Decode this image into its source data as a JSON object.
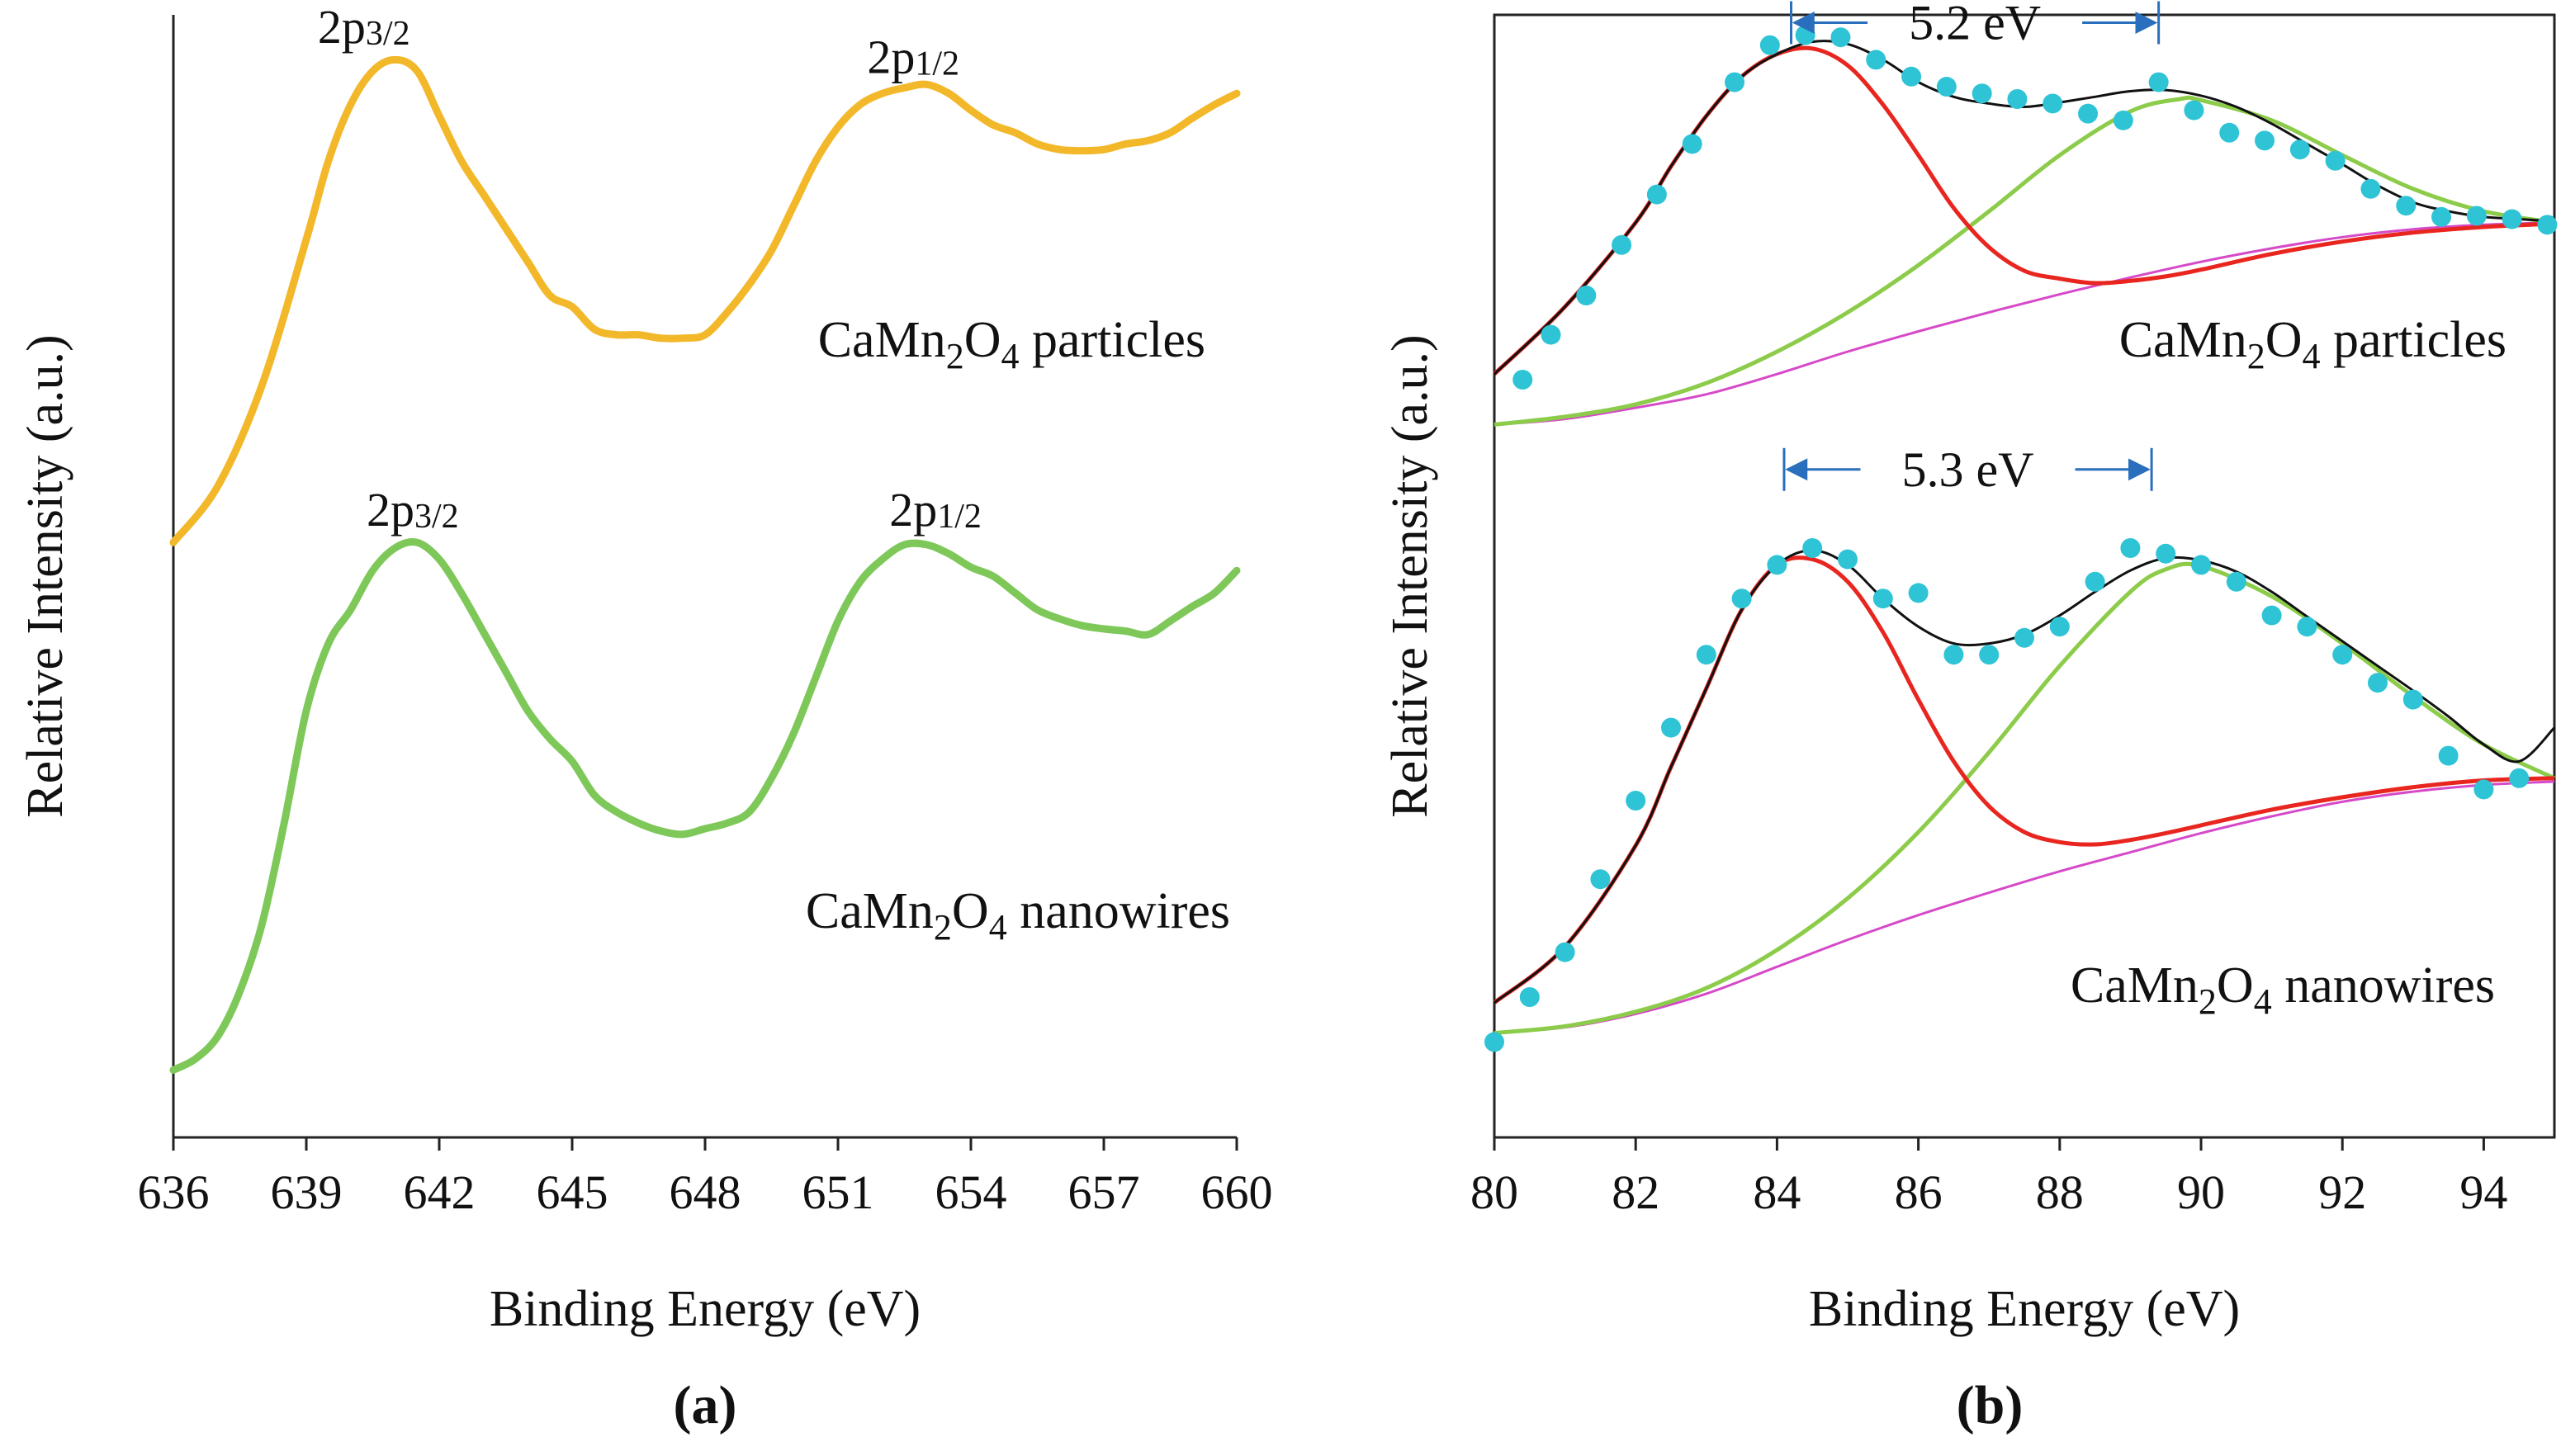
{
  "chart_data": [
    {
      "panel": "a",
      "panel_label": "(a)",
      "type": "line",
      "xlabel": "Binding Energy (eV)",
      "ylabel": "Relative Intensity (a.u.)",
      "xlim": [
        636,
        660
      ],
      "ylim": [
        0,
        100
      ],
      "xticks": [
        "636",
        "639",
        "642",
        "645",
        "648",
        "651",
        "654",
        "657",
        "660"
      ],
      "series": [
        {
          "name": "particles",
          "label_main": "CaMn",
          "label_sub1": "2",
          "label_mid": "O",
          "label_sub2": "4",
          "label_tail": " particles",
          "color": "#f2b82a",
          "x": [
            636,
            637,
            638,
            639,
            639.5,
            640,
            640.5,
            641,
            641.5,
            642,
            642.5,
            643,
            643.5,
            644,
            644.5,
            645,
            645.5,
            646,
            646.5,
            647,
            647.5,
            648,
            648.5,
            649,
            649.5,
            650,
            650.5,
            651,
            651.5,
            652,
            652.5,
            653,
            653.5,
            654,
            654.5,
            655,
            655.5,
            656,
            656.5,
            657,
            657.5,
            658,
            658.5,
            659,
            659.5,
            660
          ],
          "y": [
            53,
            58,
            67,
            80,
            87,
            92,
            95,
            96,
            95,
            91,
            87,
            84,
            81,
            78,
            75,
            74,
            72,
            71.5,
            71.5,
            71.2,
            71.2,
            71.5,
            73.5,
            76,
            79,
            83,
            87,
            90,
            92,
            93,
            93.5,
            93.8,
            93,
            91.5,
            90.2,
            89.5,
            88.5,
            88,
            87.9,
            88,
            88.5,
            88.8,
            89.5,
            90.8,
            92,
            93
          ]
        },
        {
          "name": "nanowires",
          "label_main": "CaMn",
          "label_sub1": "2",
          "label_mid": "O",
          "label_sub2": "4",
          "label_tail": " nanowires",
          "color": "#7ec85a",
          "x": [
            636,
            636.5,
            637,
            637.5,
            638,
            638.5,
            639,
            639.5,
            640,
            640.5,
            641,
            641.5,
            642,
            642.5,
            643,
            643.5,
            644,
            644.5,
            645,
            645.5,
            646,
            646.5,
            647,
            647.5,
            648,
            648.5,
            649,
            649.5,
            650,
            650.5,
            651,
            651.5,
            652,
            652.5,
            653,
            653.5,
            654,
            654.5,
            655,
            655.5,
            656,
            656.5,
            657,
            657.5,
            658,
            658.5,
            659,
            659.5,
            660
          ],
          "y": [
            6,
            7,
            9,
            13,
            19,
            28,
            38,
            44,
            47,
            50.5,
            52.5,
            53,
            51.5,
            48.5,
            45,
            41.5,
            38,
            35.5,
            33.5,
            30.5,
            29,
            28,
            27.3,
            27,
            27.5,
            28,
            29,
            32,
            36,
            41,
            46,
            49.5,
            51.5,
            52.8,
            52.8,
            52,
            50.8,
            50,
            48.5,
            47,
            46.2,
            45.6,
            45.3,
            45.1,
            44.8,
            46,
            47.3,
            48.5,
            50.5
          ]
        }
      ],
      "annotations": [
        {
          "main": "2p",
          "sub": "3/2",
          "x": 640.3,
          "y": 97.5
        },
        {
          "main": "2p",
          "sub": "1/2",
          "x": 652.7,
          "y": 94.8
        },
        {
          "main": "2p",
          "sub": "3/2",
          "x": 641.4,
          "y": 54.5
        },
        {
          "main": "2p",
          "sub": "1/2",
          "x": 653.2,
          "y": 54.5
        }
      ]
    },
    {
      "panel": "b",
      "panel_label": "(b)",
      "type": "scatter",
      "xlabel": "Binding Energy (eV)",
      "ylabel": "Relative Intensity (a.u.)",
      "xlim": [
        80,
        95
      ],
      "ylim": [
        0,
        100
      ],
      "xticks": [
        "80",
        "82",
        "84",
        "86",
        "88",
        "90",
        "92",
        "94"
      ],
      "xtick_values": [
        80,
        82,
        84,
        86,
        88,
        90,
        92,
        94
      ],
      "groups": [
        {
          "name": "particles",
          "label_main": "CaMn",
          "label_sub1": "2",
          "label_mid": "O",
          "label_sub2": "4",
          "label_tail": " particles",
          "points_color": "#2ec4d6",
          "points_x": [
            80.4,
            80.8,
            81.3,
            81.8,
            82.3,
            82.8,
            83.4,
            83.9,
            84.4,
            84.9,
            85.4,
            85.9,
            86.4,
            86.9,
            87.4,
            87.9,
            88.4,
            88.9,
            89.4,
            89.9,
            90.4,
            90.9,
            91.4,
            91.9,
            92.4,
            92.9,
            93.4,
            93.9,
            94.4,
            94.9
          ],
          "points_y": [
            67.5,
            71.5,
            75,
            79.5,
            84,
            88.5,
            94,
            97.3,
            98.2,
            98,
            96,
            94.5,
            93.6,
            93,
            92.5,
            92.1,
            91.2,
            90.6,
            94,
            91.5,
            89.5,
            88.8,
            88,
            87,
            84.5,
            83,
            82,
            82.1,
            81.8,
            81.3
          ],
          "fit_envelope_x": [
            80,
            81,
            82,
            82.5,
            83,
            83.5,
            84,
            84.5,
            85,
            85.5,
            86,
            86.5,
            87,
            87.5,
            88,
            88.5,
            89,
            89.5,
            90,
            90.5,
            91,
            91.5,
            92,
            92.5,
            93,
            93.5,
            94,
            94.5,
            95
          ],
          "fit_envelope_y": [
            68,
            74,
            81.5,
            86.5,
            91,
            94.5,
            96.5,
            97.6,
            97.4,
            96,
            94,
            92.7,
            92.1,
            91.8,
            92.2,
            92.7,
            93.2,
            93.3,
            92.8,
            91.8,
            90.3,
            88.5,
            86.7,
            84.8,
            83.3,
            82.5,
            82,
            81.8,
            81.6
          ],
          "fit_envelope_color": "#111111",
          "peak1_x": [
            80,
            81,
            82,
            82.5,
            83,
            83.5,
            84,
            84.5,
            85,
            85.5,
            86,
            86.5,
            87,
            87.5,
            88,
            88.5,
            89,
            89.5,
            90,
            91,
            92,
            93,
            94,
            95
          ],
          "peak1_y": [
            68,
            74,
            81.5,
            86.5,
            91,
            94.5,
            96.5,
            97,
            95.5,
            92,
            87.5,
            82.8,
            79.3,
            77.2,
            76.5,
            76.1,
            76.3,
            76.7,
            77.3,
            78.7,
            79.8,
            80.6,
            81.1,
            81.4
          ],
          "peak1_color": "#e8261f",
          "peak2_x": [
            80,
            81,
            82,
            83,
            84,
            85,
            86,
            87,
            88,
            89,
            89.7,
            90,
            91,
            92,
            93,
            94,
            95
          ],
          "peak2_y": [
            63.5,
            64.2,
            65.3,
            67.2,
            70,
            73.5,
            77.7,
            82.5,
            87.5,
            91.4,
            92.5,
            92.4,
            90.6,
            87.5,
            84.5,
            82.5,
            81.5
          ],
          "peak2_color": "#8ccc4a",
          "background_x": [
            80,
            81,
            82,
            83,
            84,
            85,
            86,
            87,
            88,
            89,
            90,
            91,
            92,
            93,
            94,
            95
          ],
          "background_y": [
            63.5,
            64,
            65,
            66.2,
            68,
            70,
            71.8,
            73.5,
            75.1,
            76.6,
            78,
            79.2,
            80.2,
            80.9,
            81.3,
            81.5
          ],
          "background_color": "#d649c8",
          "split": {
            "text": "5.2 eV",
            "x1": 84.2,
            "x2": 89.4,
            "y": 99.3
          }
        },
        {
          "name": "nanowires",
          "label_main": "CaMn",
          "label_sub1": "2",
          "label_mid": "O",
          "label_sub2": "4",
          "label_tail": " nanowires",
          "points_color": "#2ec4d6",
          "points_x": [
            80,
            80.5,
            81,
            81.5,
            82,
            82.5,
            83,
            83.5,
            84,
            84.5,
            85,
            85.5,
            86,
            86.5,
            87,
            87.5,
            88,
            88.5,
            89,
            89.5,
            90,
            90.5,
            91,
            91.5,
            92,
            92.5,
            93,
            93.5,
            94,
            94.5
          ],
          "points_y": [
            8.5,
            12.5,
            16.5,
            23,
            30,
            36.5,
            43,
            48,
            51,
            52.5,
            51.5,
            48,
            48.5,
            43,
            43,
            44.5,
            45.5,
            49.5,
            52.5,
            52,
            51,
            49.5,
            46.5,
            45.5,
            43,
            40.5,
            39,
            34,
            31,
            32
          ],
          "fit_envelope_x": [
            80,
            81,
            82,
            82.5,
            83,
            83.5,
            84,
            84.5,
            85,
            85.5,
            86,
            86.5,
            87,
            87.5,
            88,
            88.5,
            89,
            89.5,
            90,
            90.5,
            91,
            91.5,
            92,
            92.5,
            93,
            93.5,
            94,
            94.5,
            95
          ],
          "fit_envelope_y": [
            12,
            17,
            26,
            33,
            40,
            47,
            51,
            52.3,
            51,
            48,
            45.5,
            44,
            44,
            44.8,
            46.5,
            48.6,
            50.5,
            51.6,
            51.4,
            50.4,
            48.6,
            46.4,
            44.2,
            42,
            39.8,
            37.5,
            35,
            33.5,
            36.5
          ],
          "fit_envelope_color": "#111111",
          "peak1_x": [
            80,
            81,
            82,
            82.5,
            83,
            83.5,
            84,
            84.5,
            85,
            85.5,
            86,
            86.5,
            87,
            87.5,
            88,
            88.5,
            89,
            89.5,
            90,
            91,
            92,
            93,
            94,
            95
          ],
          "peak1_y": [
            12,
            17,
            26,
            33,
            40,
            47,
            51,
            51.5,
            49.5,
            45,
            39,
            33.5,
            29.5,
            27.2,
            26.3,
            26.1,
            26.5,
            27.1,
            27.8,
            29.2,
            30.3,
            31.2,
            31.8,
            32
          ],
          "peak1_color": "#e8261f",
          "peak2_x": [
            80,
            81,
            82,
            83,
            84,
            85,
            86,
            87,
            88,
            89,
            89.5,
            90,
            91,
            92,
            93,
            94,
            95
          ],
          "peak2_y": [
            9.3,
            9.9,
            11.2,
            13.3,
            16.7,
            21.3,
            27.2,
            34.3,
            42,
            48.6,
            50.6,
            50.9,
            48.2,
            44,
            39.3,
            35,
            32
          ],
          "peak2_color": "#8ccc4a",
          "background_x": [
            80,
            81,
            82,
            83,
            84,
            85,
            86,
            87,
            88,
            89,
            90,
            91,
            92,
            93,
            94,
            95
          ],
          "background_y": [
            9.3,
            9.8,
            11,
            12.8,
            15.2,
            17.6,
            19.8,
            21.8,
            23.7,
            25.4,
            27.1,
            28.6,
            29.9,
            30.8,
            31.4,
            31.7
          ],
          "background_color": "#d649c8",
          "split": {
            "text": "5.3 eV",
            "x1": 84.1,
            "x2": 89.3,
            "y": 59.5
          }
        }
      ]
    }
  ]
}
